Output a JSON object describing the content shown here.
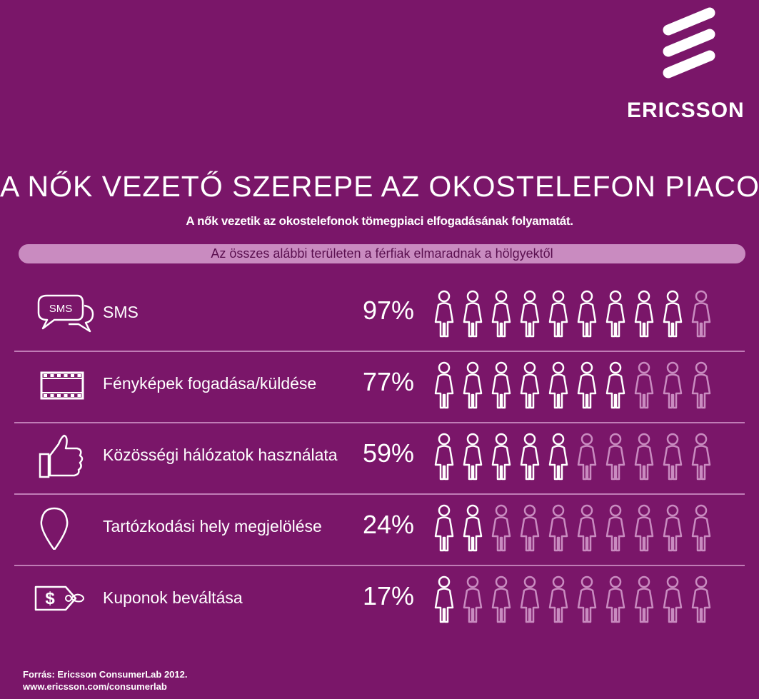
{
  "brand": {
    "name": "ERICSSON",
    "color": "#ffffff",
    "background": "#7a1669"
  },
  "header": {
    "title": "A NŐK VEZETŐ SZEREPE AZ OKOSTELEFON PIACON",
    "subtitle": "A nők vezetik az okostelefonok tömegpiaci elfogadásának folyamatát.",
    "banner": "Az összes alábbi területen a férfiak elmaradnak a hölgyektől"
  },
  "chart_data": {
    "type": "pictogram",
    "unit": "%",
    "icons_per_row": 10,
    "colors": {
      "filled": "#ffffff",
      "empty": "#c98bc0"
    },
    "categories": [
      "SMS",
      "Fényképek fogadása/küldése",
      "Közösségi hálózatok használata",
      "Tartózkodási hely megjelölése",
      "Kuponok beváltása"
    ],
    "values": [
      97,
      77,
      59,
      24,
      17
    ],
    "labels": [
      "97%",
      "77%",
      "59%",
      "24%",
      "17%"
    ],
    "icons": [
      "sms-bubble-icon",
      "film-strip-icon",
      "thumbs-up-icon",
      "location-pin-icon",
      "price-tag-icon"
    ],
    "icon_text": {
      "sms": "SMS"
    }
  },
  "footer": {
    "source": "Forrás: Ericsson ConsumerLab 2012.",
    "url": "www.ericsson.com/consumerlab"
  }
}
